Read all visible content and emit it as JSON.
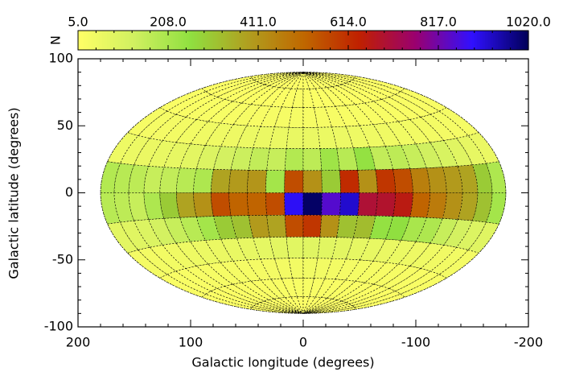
{
  "chart_data": {
    "type": "heatmap",
    "projection": "hammer-aitoff",
    "x_label": "Galactic longitude (degrees)",
    "y_label": "Galactic latitude (degrees)",
    "xlim": [
      200,
      -200
    ],
    "ylim": [
      -100,
      100
    ],
    "xticks": [
      200,
      100,
      0,
      -100,
      -200
    ],
    "yticks": [
      100,
      50,
      0,
      -50,
      -100
    ],
    "grid": true,
    "lon_edges": [
      180,
      165,
      150,
      135,
      120,
      105,
      90,
      75,
      60,
      45,
      30,
      15,
      0,
      -15,
      -30,
      -45,
      -60,
      -75,
      -90,
      -105,
      -120,
      -135,
      -150,
      -165,
      -180
    ],
    "lat_edges": [
      90,
      75,
      60,
      45,
      30,
      15,
      0,
      -15,
      -30,
      -45,
      -60,
      -75,
      -90
    ],
    "values": [
      [
        10,
        12,
        9,
        11,
        10,
        13,
        12,
        10,
        11,
        14,
        12,
        13,
        15,
        12,
        11,
        10,
        12,
        13,
        11,
        10,
        12,
        9,
        11,
        10
      ],
      [
        14,
        15,
        13,
        16,
        15,
        17,
        18,
        16,
        15,
        19,
        17,
        20,
        18,
        16,
        17,
        15,
        16,
        14,
        15,
        17,
        16,
        14,
        15,
        13
      ],
      [
        20,
        22,
        21,
        24,
        23,
        26,
        25,
        28,
        27,
        30,
        29,
        32,
        30,
        28,
        27,
        25,
        26,
        24,
        23,
        22,
        21,
        20,
        22,
        21
      ],
      [
        30,
        32,
        35,
        38,
        40,
        45,
        48,
        52,
        55,
        60,
        58,
        65,
        62,
        58,
        55,
        50,
        48,
        45,
        42,
        40,
        38,
        35,
        33,
        31
      ],
      [
        50,
        55,
        60,
        65,
        70,
        80,
        100,
        120,
        140,
        160,
        150,
        190,
        170,
        230,
        180,
        250,
        160,
        170,
        150,
        130,
        110,
        90,
        70,
        60
      ],
      [
        190,
        180,
        170,
        150,
        160,
        180,
        200,
        380,
        400,
        410,
        220,
        560,
        420,
        300,
        620,
        420,
        600,
        560,
        460,
        420,
        400,
        380,
        300,
        200
      ],
      [
        180,
        170,
        150,
        200,
        300,
        380,
        420,
        560,
        520,
        520,
        560,
        900,
        1010,
        850,
        930,
        700,
        690,
        660,
        520,
        470,
        420,
        380,
        320,
        220
      ],
      [
        80,
        90,
        100,
        120,
        150,
        180,
        220,
        300,
        320,
        400,
        380,
        560,
        600,
        420,
        320,
        330,
        250,
        260,
        210,
        200,
        150,
        120,
        100,
        90
      ],
      [
        35,
        38,
        40,
        45,
        50,
        55,
        60,
        65,
        70,
        75,
        80,
        85,
        90,
        85,
        80,
        72,
        68,
        62,
        58,
        52,
        48,
        44,
        40,
        36
      ],
      [
        22,
        24,
        25,
        27,
        28,
        30,
        32,
        33,
        35,
        36,
        38,
        40,
        42,
        40,
        38,
        36,
        34,
        32,
        30,
        28,
        27,
        25,
        24,
        23
      ],
      [
        15,
        16,
        17,
        18,
        19,
        20,
        21,
        22,
        23,
        24,
        25,
        26,
        26,
        25,
        24,
        23,
        22,
        21,
        20,
        19,
        18,
        17,
        16,
        15
      ],
      [
        10,
        11,
        10,
        12,
        11,
        12,
        13,
        12,
        13,
        14,
        13,
        14,
        14,
        13,
        14,
        13,
        12,
        13,
        12,
        11,
        12,
        10,
        11,
        10
      ]
    ],
    "colorbar": {
      "label": "N",
      "lim": [
        5,
        1020
      ],
      "ticks": [
        {
          "value": 5,
          "label": "5.0"
        },
        {
          "value": 208,
          "label": "208.0"
        },
        {
          "value": 411,
          "label": "411.0"
        },
        {
          "value": 614,
          "label": "614.0"
        },
        {
          "value": 817,
          "label": "817.0"
        },
        {
          "value": 1020,
          "label": "1020.0"
        }
      ],
      "colors": [
        "#ffff66",
        "#d0f060",
        "#90e040",
        "#b0a020",
        "#c06800",
        "#c02000",
        "#9a0070",
        "#3010ff",
        "#000058"
      ]
    }
  }
}
